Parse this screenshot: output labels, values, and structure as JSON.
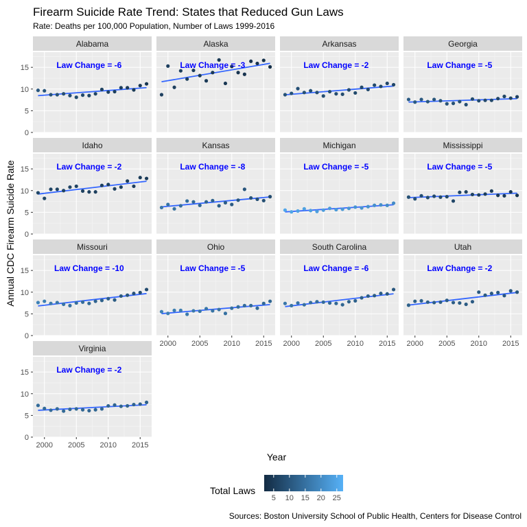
{
  "chart_data": {
    "type": "scatter",
    "title": "Firearm Suicide Rate Trend: States that Reduced Gun Laws",
    "subtitle": "Rate: Deaths per 100,000 Population, Number of Laws 1999-2016",
    "xlabel": "Year",
    "ylabel": "Annual CDC Firearm Suicide Rate",
    "caption": "Sources: Boston University School of Public Health, Centers for Disease Control",
    "x_ticks": [
      2000,
      2005,
      2010,
      2015
    ],
    "y_ticks": [
      0,
      5,
      10,
      15
    ],
    "xlim": [
      1998.2,
      2016.8
    ],
    "ylim": [
      0,
      18.5
    ],
    "trend": "linear fit per state",
    "legend": {
      "title": "Total Laws",
      "ticks": [
        5,
        10,
        15,
        20,
        25
      ],
      "range": [
        2,
        27
      ],
      "color_low": "#132B43",
      "color_high": "#56B1F7",
      "placement": "bottom"
    },
    "years": [
      1999,
      2000,
      2001,
      2002,
      2003,
      2004,
      2005,
      2006,
      2007,
      2008,
      2009,
      2010,
      2011,
      2012,
      2013,
      2014,
      2015,
      2016
    ],
    "panels": [
      {
        "state": "Alabama",
        "law_change": "Law Change = -6",
        "laws_start": 10,
        "laws_end": 4,
        "rates": [
          9.7,
          9.6,
          8.7,
          8.7,
          8.9,
          8.5,
          8.1,
          8.6,
          8.5,
          8.9,
          9.9,
          9.3,
          9.4,
          10.3,
          10.3,
          9.8,
          10.8,
          11.2
        ]
      },
      {
        "state": "Alaska",
        "law_change": "Law Change = -3",
        "laws_start": 6,
        "laws_end": 3,
        "rates": [
          8.7,
          15.3,
          10.4,
          14.2,
          12.3,
          14.3,
          13.1,
          11.9,
          13.8,
          16.7,
          11.3,
          15.2,
          13.8,
          13.4,
          16.4,
          15.9,
          16.6,
          15.1
        ]
      },
      {
        "state": "Arkansas",
        "law_change": "Law Change = -2",
        "laws_start": 9,
        "laws_end": 7,
        "rates": [
          8.7,
          9.0,
          10.1,
          9.2,
          9.6,
          9.2,
          8.4,
          9.4,
          8.9,
          8.8,
          9.8,
          9.1,
          10.4,
          9.9,
          10.9,
          10.6,
          11.3,
          11.0
        ]
      },
      {
        "state": "Georgia",
        "law_change": "Law Change = -5",
        "laws_start": 11,
        "laws_end": 6,
        "rates": [
          7.6,
          7.0,
          7.6,
          7.1,
          7.6,
          7.3,
          6.6,
          6.7,
          7.1,
          6.4,
          7.7,
          7.3,
          7.4,
          7.4,
          7.8,
          8.3,
          7.9,
          8.2
        ]
      },
      {
        "state": "Idaho",
        "law_change": "Law Change = -2",
        "laws_start": 7,
        "laws_end": 5,
        "rates": [
          9.5,
          8.2,
          10.3,
          10.3,
          10.0,
          10.8,
          11.0,
          9.9,
          9.7,
          9.7,
          11.2,
          11.4,
          10.4,
          10.8,
          12.2,
          11.0,
          13.0,
          12.8
        ]
      },
      {
        "state": "Kansas",
        "law_change": "Law Change = -8",
        "laws_start": 16,
        "laws_end": 8,
        "rates": [
          6.1,
          6.8,
          5.8,
          6.5,
          7.6,
          7.4,
          6.6,
          7.4,
          7.7,
          6.5,
          7.2,
          6.8,
          7.8,
          10.3,
          8.3,
          8.0,
          7.7,
          8.6
        ]
      },
      {
        "state": "Michigan",
        "law_change": "Law Change = -5",
        "laws_start": 25,
        "laws_end": 20,
        "rates": [
          5.5,
          5.1,
          5.3,
          5.8,
          5.4,
          5.2,
          5.5,
          5.9,
          5.6,
          5.7,
          5.9,
          6.2,
          6.0,
          6.3,
          6.6,
          6.7,
          6.6,
          7.1
        ]
      },
      {
        "state": "Mississippi",
        "law_change": "Law Change = -5",
        "laws_start": 9,
        "laws_end": 4,
        "rates": [
          8.5,
          8.1,
          8.8,
          8.4,
          8.7,
          8.5,
          8.6,
          7.6,
          9.6,
          9.7,
          9.1,
          9.0,
          9.2,
          9.9,
          8.9,
          8.8,
          9.7,
          8.9
        ]
      },
      {
        "state": "Missouri",
        "law_change": "Law Change = -10",
        "laws_start": 18,
        "laws_end": 8,
        "rates": [
          7.6,
          7.9,
          7.4,
          7.6,
          7.2,
          6.9,
          7.5,
          7.7,
          7.4,
          7.9,
          8.1,
          8.5,
          8.2,
          9.1,
          9.3,
          9.7,
          9.9,
          10.6
        ]
      },
      {
        "state": "Ohio",
        "law_change": "Law Change = -5",
        "laws_start": 18,
        "laws_end": 13,
        "rates": [
          5.5,
          5.1,
          5.8,
          5.8,
          4.9,
          5.7,
          5.6,
          6.2,
          5.7,
          6.0,
          5.1,
          6.3,
          6.6,
          6.9,
          6.9,
          6.3,
          7.4,
          7.9
        ]
      },
      {
        "state": "South Carolina",
        "law_change": "Law Change = -6",
        "laws_start": 16,
        "laws_end": 10,
        "rates": [
          7.4,
          6.9,
          7.5,
          7.1,
          7.6,
          7.8,
          7.7,
          7.5,
          7.4,
          7.1,
          7.8,
          8.0,
          8.7,
          9.1,
          9.2,
          9.7,
          9.6,
          10.6
        ]
      },
      {
        "state": "Utah",
        "law_change": "Law Change = -2",
        "laws_start": 12,
        "laws_end": 10,
        "rates": [
          7.0,
          7.9,
          8.0,
          7.7,
          7.6,
          7.7,
          8.1,
          7.6,
          7.5,
          7.2,
          7.8,
          10.0,
          9.3,
          9.7,
          9.9,
          9.2,
          10.3,
          10.0
        ]
      },
      {
        "state": "Virginia",
        "law_change": "Law Change = -2",
        "laws_start": 14,
        "laws_end": 12,
        "rates": [
          7.3,
          6.6,
          6.2,
          6.5,
          6.0,
          6.4,
          6.5,
          6.3,
          6.1,
          6.3,
          6.5,
          7.2,
          7.4,
          7.1,
          7.2,
          7.5,
          7.6,
          8.0
        ]
      }
    ]
  }
}
